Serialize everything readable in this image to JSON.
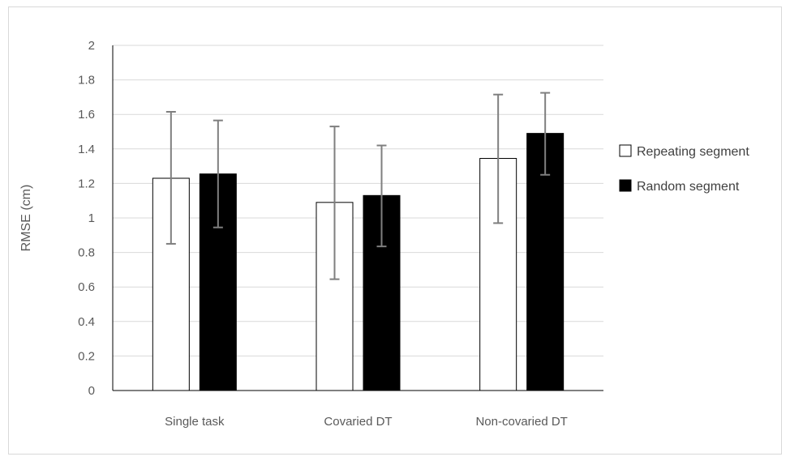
{
  "chart_data": {
    "type": "bar",
    "title": "",
    "xlabel": "",
    "ylabel": "RMSE (cm)",
    "ylim": [
      0,
      2
    ],
    "yticks": [
      "0",
      "0.2",
      "0.4",
      "0.6",
      "0.8",
      "1",
      "1.2",
      "1.4",
      "1.6",
      "1.8",
      "2"
    ],
    "grid": true,
    "legend_position": "right",
    "categories": [
      "Single task",
      "Covaried DT",
      "Non-covaried DT"
    ],
    "series": [
      {
        "name": "Repeating segment",
        "color": "#ffffff",
        "values": [
          1.23,
          1.09,
          1.345
        ],
        "error_low": [
          0.85,
          0.645,
          0.97
        ],
        "error_high": [
          1.615,
          1.53,
          1.715
        ]
      },
      {
        "name": "Random segment",
        "color": "#000000",
        "values": [
          1.255,
          1.13,
          1.49
        ],
        "error_low": [
          0.945,
          0.835,
          1.25
        ],
        "error_high": [
          1.565,
          1.42,
          1.725
        ]
      }
    ]
  }
}
